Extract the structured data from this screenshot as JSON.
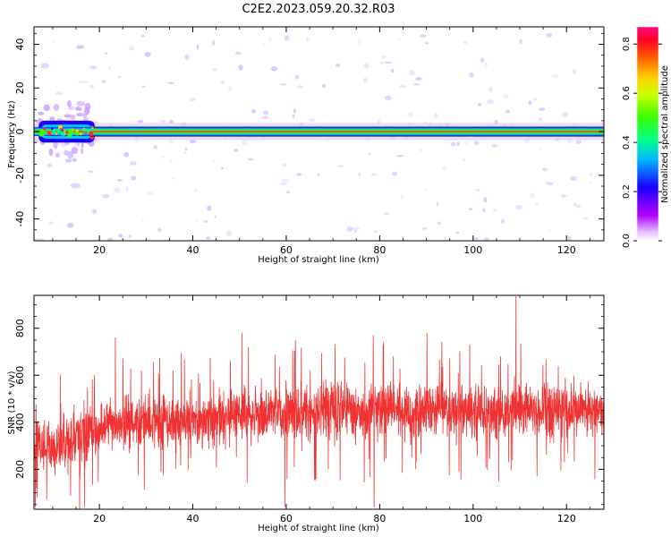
{
  "figure_title": "C2E2.2023.059.20.32.R03",
  "chart_data": [
    {
      "type": "heatmap",
      "xlabel": "Height of straight line (km)",
      "ylabel": "Frequency (Hz)",
      "xlim": [
        6,
        128
      ],
      "ylim": [
        -50,
        48
      ],
      "xticks": [
        20,
        40,
        60,
        80,
        100,
        120
      ],
      "yticks": [
        -40,
        -20,
        0,
        20,
        40
      ],
      "grid": false,
      "colorbar": {
        "label": "Normalized spectral amplitude",
        "range": [
          0.0,
          0.87
        ],
        "ticks": [
          0.0,
          0.2,
          0.4,
          0.6,
          0.8
        ],
        "colormap": "gist_rainbow"
      },
      "features": {
        "band_center_hz": 0,
        "band_halfwidth_hz": 2,
        "band_peak_amplitude": 0.85,
        "strong_region_km": [
          7,
          19
        ],
        "strong_region_halfwidth_hz": 5
      }
    },
    {
      "type": "line",
      "xlabel": "Height of straight line (km)",
      "ylabel": "SNR (10 * v/v)",
      "xlim": [
        6,
        128
      ],
      "ylim": [
        30,
        940
      ],
      "xticks": [
        20,
        40,
        60,
        80,
        100,
        120
      ],
      "yticks": [
        200,
        400,
        600,
        800
      ],
      "grid": false,
      "series": [
        {
          "color": "#f03232",
          "trend_x": [
            6,
            10,
            15,
            20,
            30,
            40,
            50,
            60,
            70,
            80,
            90,
            100,
            110,
            120,
            128
          ],
          "trend_y": [
            330,
            300,
            330,
            370,
            400,
            410,
            430,
            440,
            450,
            455,
            450,
            445,
            450,
            455,
            455
          ],
          "spread_y": [
            130,
            140,
            140,
            120,
            120,
            125,
            130,
            130,
            130,
            130,
            125,
            125,
            130,
            130,
            130
          ],
          "peaks": [
            {
              "x": 109.2,
              "y": 935
            },
            {
              "x": 128,
              "y": 800
            },
            {
              "x": 50.5,
              "y": 782
            },
            {
              "x": 90.1,
              "y": 780
            },
            {
              "x": 78.6,
              "y": 770
            },
            {
              "x": 23.4,
              "y": 760
            },
            {
              "x": 6.3,
              "y": 40
            },
            {
              "x": 16.8,
              "y": 40
            },
            {
              "x": 78.8,
              "y": 40
            },
            {
              "x": 59.7,
              "y": 40
            }
          ]
        }
      ]
    }
  ]
}
